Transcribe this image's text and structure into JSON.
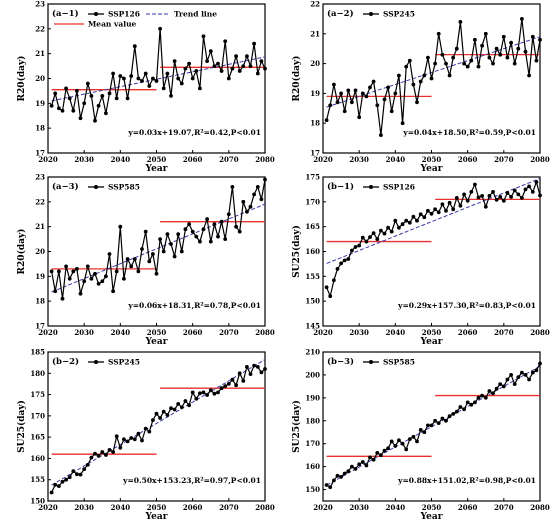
{
  "chart_data": [
    {
      "id": "a-1",
      "type": "line",
      "panel_label": "(a−1)",
      "xlabel": "Year",
      "ylabel": "R20(day)",
      "xlim": [
        2020,
        2080
      ],
      "ylim": [
        17,
        23
      ],
      "xticks": [
        2020,
        2030,
        2040,
        2050,
        2060,
        2070,
        2080
      ],
      "yticks": [
        17,
        18,
        19,
        20,
        21,
        22,
        23
      ],
      "series": [
        {
          "name": "SSP126",
          "x_start": 2021,
          "values": [
            18.9,
            19.4,
            18.8,
            18.7,
            19.6,
            19.2,
            18.7,
            19.5,
            18.4,
            19.0,
            19.8,
            19.3,
            18.3,
            18.9,
            19.3,
            18.6,
            19.4,
            20.2,
            19.2,
            20.1,
            20.0,
            19.2,
            20.1,
            21.3,
            20.0,
            19.9,
            20.2,
            19.7,
            20.0,
            19.9,
            22.0,
            19.6,
            20.2,
            19.3,
            20.7,
            20.0,
            19.8,
            20.4,
            20.6,
            20.0,
            20.3,
            19.6,
            21.7,
            20.7,
            21.1,
            20.5,
            20.6,
            20.3,
            21.5,
            20.0,
            20.4,
            20.9,
            20.3,
            20.5,
            20.9,
            20.5,
            21.4,
            20.2,
            20.7,
            20.4
          ]
        }
      ],
      "trend": {
        "name": "Trend line",
        "slope": 0.03,
        "intercept": 19.07
      },
      "mean_segments": [
        {
          "x0": 2021,
          "x1": 2050,
          "y": 19.55
        },
        {
          "x0": 2051,
          "x1": 2080,
          "y": 20.45
        }
      ],
      "mean_label": "Mean value",
      "equation": "y=0.03x+19.07,R²=0.42,P<0.01"
    },
    {
      "id": "a-2",
      "type": "line",
      "panel_label": "(a−2)",
      "xlabel": "Year",
      "ylabel": "R20(day)",
      "xlim": [
        2020,
        2080
      ],
      "ylim": [
        17,
        22
      ],
      "xticks": [
        2020,
        2030,
        2040,
        2050,
        2060,
        2070,
        2080
      ],
      "yticks": [
        17,
        18,
        19,
        20,
        21,
        22
      ],
      "series": [
        {
          "name": "SSP245",
          "x_start": 2021,
          "values": [
            18.1,
            18.6,
            19.3,
            18.7,
            19.0,
            18.4,
            19.1,
            18.7,
            19.1,
            18.2,
            19.0,
            18.9,
            19.2,
            19.4,
            18.6,
            17.6,
            18.8,
            19.2,
            18.4,
            19.0,
            19.6,
            18.0,
            19.9,
            20.1,
            19.3,
            18.7,
            19.4,
            19.6,
            20.2,
            19.5,
            20.0,
            21.0,
            20.3,
            20.0,
            19.6,
            20.2,
            20.5,
            21.4,
            20.0,
            19.9,
            20.1,
            20.8,
            19.9,
            20.6,
            21.0,
            20.2,
            20.0,
            20.5,
            20.3,
            20.9,
            20.2,
            20.7,
            20.0,
            20.5,
            21.5,
            20.4,
            19.6,
            20.9,
            20.1,
            20.8
          ]
        }
      ],
      "trend": {
        "name": "Trend line",
        "slope": 0.04,
        "intercept": 18.5
      },
      "mean_segments": [
        {
          "x0": 2021,
          "x1": 2050,
          "y": 18.9
        },
        {
          "x0": 2051,
          "x1": 2080,
          "y": 20.3
        }
      ],
      "mean_label": "Mean value",
      "equation": "y=0.04x+18.50,R²=0.59,P<0.01"
    },
    {
      "id": "a-3",
      "type": "line",
      "panel_label": "(a−3)",
      "xlabel": "Year",
      "ylabel": "R20(day)",
      "xlim": [
        2020,
        2080
      ],
      "ylim": [
        17,
        23
      ],
      "xticks": [
        2020,
        2030,
        2040,
        2050,
        2060,
        2070,
        2080
      ],
      "yticks": [
        17,
        18,
        19,
        20,
        21,
        22,
        23
      ],
      "series": [
        {
          "name": "SSP585",
          "x_start": 2021,
          "values": [
            19.2,
            18.4,
            19.2,
            18.1,
            19.4,
            18.9,
            19.2,
            19.3,
            18.3,
            18.8,
            19.4,
            18.9,
            19.1,
            18.7,
            18.8,
            19.0,
            19.9,
            18.4,
            19.2,
            21.0,
            18.9,
            19.7,
            19.4,
            19.7,
            19.2,
            20.1,
            20.8,
            19.6,
            19.9,
            19.1,
            20.5,
            20.0,
            20.7,
            20.3,
            19.8,
            20.7,
            20.0,
            20.9,
            21.1,
            20.8,
            20.6,
            20.4,
            20.9,
            21.3,
            20.4,
            21.1,
            20.6,
            21.2,
            20.5,
            21.5,
            22.6,
            21.0,
            20.8,
            22.0,
            21.6,
            21.8,
            22.3,
            22.6,
            22.1,
            22.9
          ]
        }
      ],
      "trend": {
        "name": "Trend line",
        "slope": 0.06,
        "intercept": 18.31
      },
      "mean_segments": [
        {
          "x0": 2021,
          "x1": 2050,
          "y": 19.3
        },
        {
          "x0": 2051,
          "x1": 2080,
          "y": 21.2
        }
      ],
      "mean_label": "Mean value",
      "equation": "y=0.06x+18.31,R²=0.78,P<0.01"
    },
    {
      "id": "b-1",
      "type": "line",
      "panel_label": "(b−1)",
      "xlabel": "Year",
      "ylabel": "SU25(day)",
      "xlim": [
        2020,
        2080
      ],
      "ylim": [
        145,
        175
      ],
      "xticks": [
        2020,
        2030,
        2040,
        2050,
        2060,
        2070,
        2080
      ],
      "yticks": [
        145,
        150,
        155,
        160,
        165,
        170,
        175
      ],
      "series": [
        {
          "name": "SSP126",
          "x_start": 2021,
          "values": [
            152.8,
            151.0,
            154.2,
            156.5,
            157.6,
            158.2,
            158.5,
            160.2,
            160.9,
            161.2,
            162.8,
            162.0,
            162.9,
            163.7,
            162.5,
            164.2,
            163.6,
            164.8,
            164.0,
            166.2,
            164.8,
            165.5,
            166.2,
            165.8,
            167.0,
            166.2,
            167.5,
            166.9,
            168.2,
            167.6,
            168.5,
            167.9,
            169.5,
            168.2,
            169.8,
            168.5,
            170.8,
            169.2,
            171.5,
            170.2,
            172.0,
            173.5,
            170.9,
            171.2,
            169.0,
            171.2,
            172.0,
            170.4,
            171.0,
            170.2,
            171.8,
            171.0,
            172.3,
            171.5,
            170.8,
            172.5,
            173.1,
            172.0,
            174.0,
            171.3
          ]
        }
      ],
      "trend": {
        "name": "Trend line",
        "slope": 0.29,
        "intercept": 157.3
      },
      "mean_segments": [
        {
          "x0": 2021,
          "x1": 2050,
          "y": 162.0
        },
        {
          "x0": 2051,
          "x1": 2080,
          "y": 170.5
        }
      ],
      "mean_label": "Mean value",
      "equation": "y=0.29x+157.30,R²=0.83,P<0.01"
    },
    {
      "id": "b-2",
      "type": "line",
      "panel_label": "(b−2)",
      "xlabel": "Year",
      "ylabel": "SU25(day)",
      "xlim": [
        2020,
        2080
      ],
      "ylim": [
        150,
        185
      ],
      "xticks": [
        2020,
        2030,
        2040,
        2050,
        2060,
        2070,
        2080
      ],
      "yticks": [
        150,
        155,
        160,
        165,
        170,
        175,
        180,
        185
      ],
      "series": [
        {
          "name": "SSP245",
          "x_start": 2021,
          "values": [
            152.0,
            153.8,
            153.5,
            154.5,
            155.0,
            155.6,
            157.0,
            156.3,
            156.2,
            157.5,
            158.5,
            160.2,
            161.1,
            160.6,
            161.5,
            160.8,
            162.0,
            161.5,
            165.2,
            162.5,
            164.5,
            164.0,
            164.8,
            164.5,
            165.8,
            164.2,
            167.0,
            166.3,
            169.0,
            170.5,
            169.5,
            171.0,
            170.2,
            171.8,
            171.5,
            172.8,
            172.0,
            173.5,
            172.5,
            175.5,
            174.0,
            175.3,
            175.5,
            174.9,
            176.0,
            175.2,
            175.5,
            176.5,
            177.0,
            177.5,
            178.5,
            177.2,
            180.0,
            178.2,
            181.5,
            179.8,
            181.8,
            181.5,
            180.2,
            181.0
          ]
        }
      ],
      "trend": {
        "name": "Trend line",
        "slope": 0.5,
        "intercept": 153.23
      },
      "mean_segments": [
        {
          "x0": 2021,
          "x1": 2050,
          "y": 161.0
        },
        {
          "x0": 2051,
          "x1": 2080,
          "y": 176.5
        }
      ],
      "mean_label": "Mean value",
      "equation": "y=0.50x+153.23,R²=0.97,P<0.01"
    },
    {
      "id": "b-3",
      "type": "line",
      "panel_label": "(b−3)",
      "xlabel": "Year",
      "ylabel": "SU25(day)",
      "xlim": [
        2020,
        2080
      ],
      "ylim": [
        145,
        210
      ],
      "xticks": [
        2020,
        2030,
        2040,
        2050,
        2060,
        2070,
        2080
      ],
      "yticks": [
        150,
        160,
        170,
        180,
        190,
        200,
        210
      ],
      "series": [
        {
          "name": "SSP585",
          "x_start": 2021,
          "values": [
            152.0,
            151.0,
            154.0,
            156.0,
            155.5,
            157.0,
            158.0,
            160.0,
            159.0,
            161.0,
            162.0,
            160.5,
            164.0,
            163.0,
            166.0,
            165.0,
            167.0,
            168.0,
            171.0,
            169.0,
            171.5,
            170.0,
            167.5,
            172.0,
            173.0,
            171.0,
            176.0,
            175.0,
            178.0,
            178.0,
            180.0,
            179.0,
            181.0,
            180.0,
            182.0,
            183.0,
            184.0,
            186.0,
            185.0,
            188.0,
            187.0,
            188.0,
            190.0,
            191.0,
            190.0,
            193.0,
            192.0,
            194.0,
            196.0,
            195.0,
            198.0,
            200.0,
            196.0,
            199.0,
            201.0,
            200.0,
            198.0,
            201.0,
            202.0,
            205.0
          ]
        }
      ],
      "trend": {
        "name": "Trend line",
        "slope": 0.88,
        "intercept": 151.02
      },
      "mean_segments": [
        {
          "x0": 2021,
          "x1": 2050,
          "y": 164.5
        },
        {
          "x0": 2051,
          "x1": 2080,
          "y": 191.0
        }
      ],
      "mean_label": "Mean value",
      "equation": "y=0.88x+151.02,R²=0.98,P<0.01"
    }
  ],
  "colors": {
    "series": "#000000",
    "trend": "#3a3aa8",
    "mean": "#e8302c",
    "axis": "#000000"
  }
}
